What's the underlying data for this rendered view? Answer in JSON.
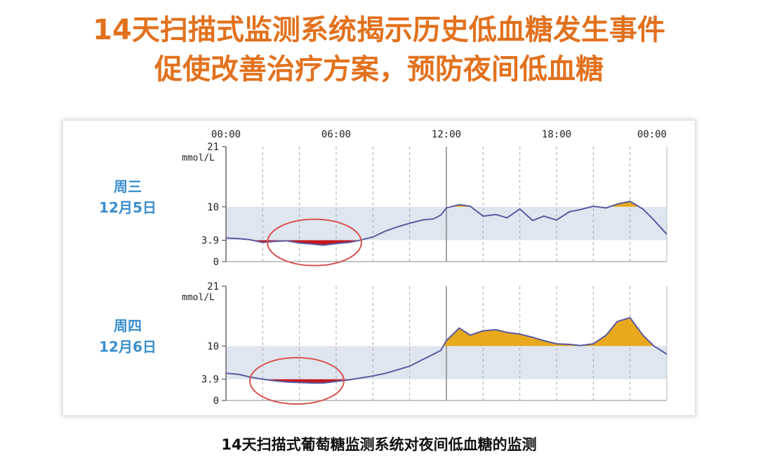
{
  "headline": {
    "line1": "14天扫描式监测系统揭示历史低血糖发生事件",
    "line2": "促使改善治疗方案，预防夜间低血糖"
  },
  "caption": "14天扫描式葡萄糖监测系统对夜间低血糖的监测",
  "colors": {
    "headline": "#e2711d",
    "target_band": "#dfe6f0",
    "line": "#5a5aa0",
    "high_fill": "#e8a91c",
    "low_fill": "#c4161c",
    "highlight_ellipse": "#d9534f",
    "day_label": "#3a8fd0"
  },
  "chart_data": [
    {
      "type": "line",
      "day_label": [
        "周三",
        "12月5日"
      ],
      "x_unit": "hours",
      "x_ticks": [
        "00:00",
        "06:00",
        "12:00",
        "18:00",
        "00:00"
      ],
      "y_unit_label": "mmol/L",
      "y_ticks": [
        0,
        3.9,
        10,
        21
      ],
      "ylim": [
        0,
        21
      ],
      "target_range": [
        3.9,
        10
      ],
      "low_highlight": true,
      "x": [
        0,
        0.7,
        1.3,
        2,
        2.7,
        3.3,
        4,
        4.7,
        5.3,
        6,
        6.7,
        7.3,
        8,
        8.7,
        9.3,
        10,
        10.7,
        11.3,
        11.7,
        12,
        12.7,
        13.3,
        14,
        14.7,
        15.3,
        16,
        16.7,
        17.3,
        18,
        18.7,
        19.3,
        20,
        20.7,
        21.3,
        22,
        22.7,
        23.3,
        24
      ],
      "y": [
        4.3,
        4.2,
        4.0,
        3.5,
        3.7,
        3.8,
        3.4,
        3.2,
        3.0,
        3.3,
        3.5,
        3.9,
        4.5,
        5.6,
        6.3,
        7.0,
        7.6,
        7.8,
        8.5,
        9.8,
        10.4,
        10.1,
        8.3,
        8.6,
        8.0,
        9.6,
        7.5,
        8.3,
        7.6,
        9.1,
        9.5,
        10.1,
        9.8,
        10.5,
        11.0,
        9.6,
        7.6,
        5.0
      ]
    },
    {
      "type": "line",
      "day_label": [
        "周四",
        "12月6日"
      ],
      "x_unit": "hours",
      "x_ticks": [
        "00:00",
        "06:00",
        "12:00",
        "18:00",
        "00:00"
      ],
      "y_unit_label": "mmol/L",
      "y_ticks": [
        0,
        3.9,
        10,
        21
      ],
      "ylim": [
        0,
        21
      ],
      "target_range": [
        3.9,
        10
      ],
      "low_highlight": true,
      "x": [
        0,
        0.7,
        1.3,
        2,
        2.7,
        3.3,
        4,
        4.7,
        5.3,
        6,
        6.7,
        7.3,
        8,
        8.7,
        9.3,
        10,
        10.7,
        11.3,
        11.7,
        12,
        12.7,
        13.3,
        14,
        14.7,
        15.3,
        16,
        16.7,
        17.3,
        18,
        18.7,
        19.3,
        20,
        20.7,
        21.3,
        22,
        22.7,
        23.3,
        24
      ],
      "y": [
        5.0,
        4.8,
        4.3,
        3.9,
        3.6,
        3.4,
        3.3,
        3.2,
        3.2,
        3.5,
        3.8,
        4.1,
        4.5,
        5.0,
        5.6,
        6.3,
        7.5,
        8.5,
        9.2,
        11.0,
        13.3,
        12.0,
        12.8,
        13.0,
        12.5,
        12.2,
        11.6,
        11.0,
        10.4,
        10.3,
        10.1,
        10.4,
        12.0,
        14.5,
        15.2,
        12.0,
        10.0,
        8.5
      ]
    }
  ]
}
